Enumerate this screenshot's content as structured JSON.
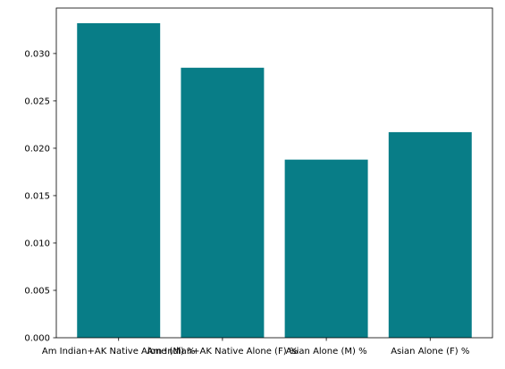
{
  "chart_data": {
    "type": "bar",
    "categories": [
      "Am Indian+AK Native Alone (M) %",
      "Am Indian+AK Native Alone (F) %",
      "Asian Alone (M) %",
      "Asian Alone (F) %"
    ],
    "values": [
      0.0332,
      0.0285,
      0.0188,
      0.0217
    ],
    "title": "",
    "xlabel": "",
    "ylabel": "",
    "ylim": [
      0,
      0.0348
    ],
    "yticks": [
      "0.000",
      "0.005",
      "0.010",
      "0.015",
      "0.020",
      "0.025",
      "0.030"
    ],
    "ytick_values": [
      0,
      0.005,
      0.01,
      0.015,
      0.02,
      0.025,
      0.03
    ],
    "bar_color": "#087d87",
    "grid": false
  }
}
